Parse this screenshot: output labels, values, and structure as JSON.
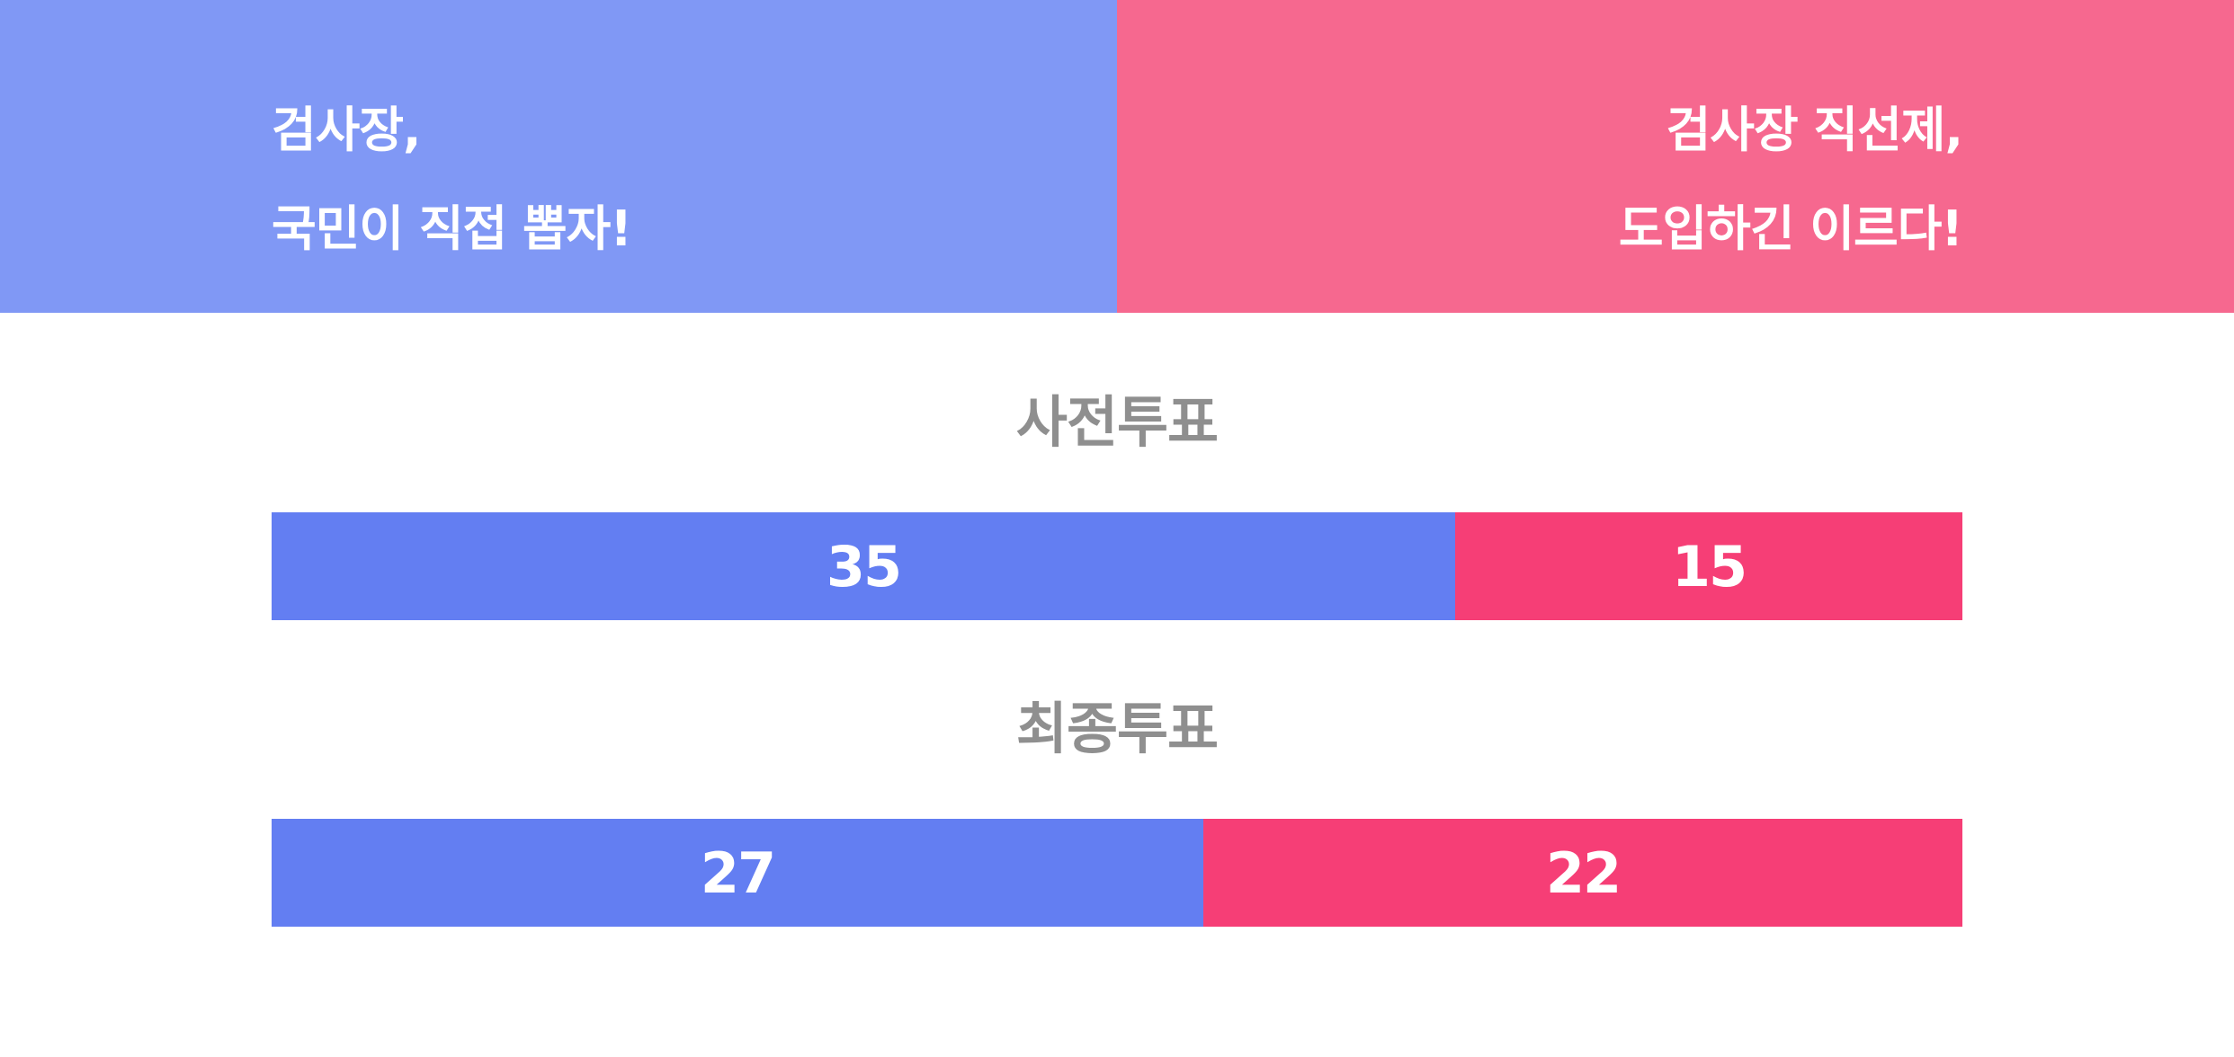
{
  "header": {
    "left": {
      "lines": [
        "검사장,",
        "국민이 직접 뽑자!"
      ],
      "color": "#8098f5"
    },
    "right": {
      "lines": [
        "검사장 직선제,",
        "도입하긴 이르다!"
      ],
      "color": "#f6688f"
    }
  },
  "chart_data": {
    "type": "bar",
    "orientation": "horizontal-stacked",
    "categories": [
      "사전투표",
      "최종투표"
    ],
    "series": [
      {
        "name": "검사장, 국민이 직접 뽑자!",
        "values": [
          35,
          27
        ],
        "color": "#637ef2"
      },
      {
        "name": "검사장 직선제, 도입하긴 이르다!",
        "values": [
          15,
          22
        ],
        "color": "#f63e76"
      }
    ]
  }
}
